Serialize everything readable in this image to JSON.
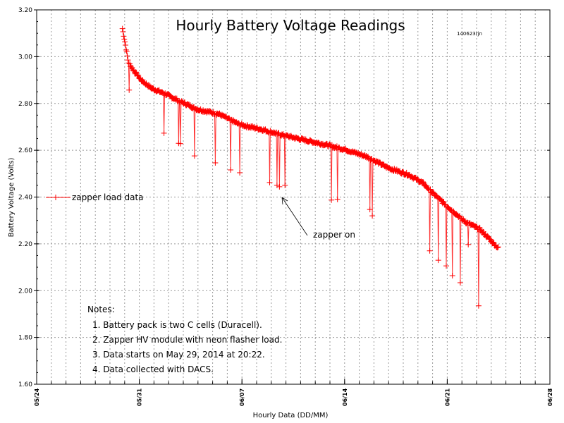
{
  "chart_data": {
    "type": "line",
    "title": "Hourly Battery Voltage Readings",
    "tag": "140623rjn",
    "xlabel": "Hourly Data (DD/MM)",
    "ylabel": "Battery Voltage (Volts)",
    "xlim": [
      "05/24",
      "06/28"
    ],
    "ylim": [
      1.6,
      3.2
    ],
    "x_ticks": [
      "05/24",
      "05/31",
      "06/07",
      "06/14",
      "06/21",
      "06/28"
    ],
    "y_ticks": [
      "1.60",
      "1.80",
      "2.00",
      "2.20",
      "2.40",
      "2.60",
      "2.80",
      "3.00",
      "3.20"
    ],
    "grid": true,
    "legend_position": "left",
    "series_color": "#ff0000",
    "series": [
      {
        "name": "zapper load data",
        "baseline": [
          [
            "05/29 20:22",
            3.12
          ],
          [
            "05/30 01:00",
            3.055
          ],
          [
            "05/30 06:00",
            2.977
          ],
          [
            "05/30 15:00",
            2.94
          ],
          [
            "05/31 03:00",
            2.9
          ],
          [
            "05/31 20:00",
            2.865
          ],
          [
            "06/01 19:00",
            2.84
          ],
          [
            "06/02 18:00",
            2.81
          ],
          [
            "06/03 23:00",
            2.775
          ],
          [
            "06/05 10:00",
            2.755
          ],
          [
            "06/06 20:00",
            2.71
          ],
          [
            "06/08 07:00",
            2.69
          ],
          [
            "06/09 18:00",
            2.665
          ],
          [
            "06/11 04:00",
            2.645
          ],
          [
            "06/12 15:00",
            2.625
          ],
          [
            "06/14 01:00",
            2.603
          ],
          [
            "06/15 12:00",
            2.573
          ],
          [
            "06/16 23:00",
            2.525
          ],
          [
            "06/18 09:00",
            2.495
          ],
          [
            "06/19 08:00",
            2.46
          ],
          [
            "06/20 07:00",
            2.4
          ],
          [
            "06/21 06:00",
            2.347
          ],
          [
            "06/22 06:00",
            2.293
          ],
          [
            "06/23 05:00",
            2.263
          ],
          [
            "06/23 22:00",
            2.218
          ],
          [
            "06/24 12:00",
            2.18
          ]
        ],
        "dips": [
          [
            "05/30 07:00",
            2.857
          ],
          [
            "06/01 16:00",
            2.673
          ],
          [
            "06/02 16:00",
            2.63
          ],
          [
            "06/02 19:00",
            2.628
          ],
          [
            "06/03 18:00",
            2.576
          ],
          [
            "06/05 04:00",
            2.546
          ],
          [
            "06/06 05:00",
            2.516
          ],
          [
            "06/06 20:00",
            2.504
          ],
          [
            "06/08 21:00",
            2.462
          ],
          [
            "06/09 09:00",
            2.45
          ],
          [
            "06/09 13:00",
            2.444
          ],
          [
            "06/09 22:00",
            2.45
          ],
          [
            "06/13 02:00",
            2.387
          ],
          [
            "06/13 12:00",
            2.39
          ],
          [
            "06/15 17:00",
            2.347
          ],
          [
            "06/15 21:00",
            2.32
          ],
          [
            "06/19 19:00",
            2.17
          ],
          [
            "06/20 09:00",
            2.13
          ],
          [
            "06/20 22:00",
            2.106
          ],
          [
            "06/21 08:00",
            2.064
          ],
          [
            "06/21 21:00",
            2.034
          ],
          [
            "06/22 10:00",
            2.197
          ],
          [
            "06/23 03:00",
            1.935
          ]
        ]
      }
    ],
    "annotation": {
      "text": "zapper on",
      "points_to": [
        "06/09 12:00",
        2.4
      ]
    },
    "notes": {
      "heading": "Notes:",
      "items": [
        "1. Battery pack is two C cells (Duracell).",
        "2. Zapper HV module with neon flasher load.",
        "3. Data starts on May 29, 2014 at 20:22.",
        "4. Data collected with DACS."
      ]
    }
  }
}
